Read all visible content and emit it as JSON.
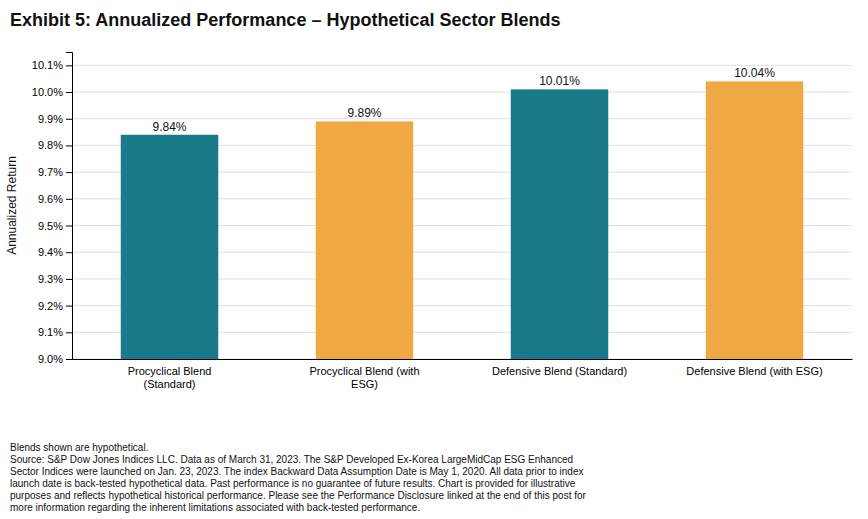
{
  "chart_data": {
    "type": "bar",
    "title": "Exhibit 5: Annualized Performance – Hypothetical Sector Blends",
    "categories": [
      "Procyclical Blend\n(Standard)",
      "Procyclical Blend (with\nESG)",
      "Defensive Blend (Standard)",
      "Defensive Blend (with ESG)"
    ],
    "values": [
      9.84,
      9.89,
      10.01,
      10.04
    ],
    "value_labels": [
      "9.84%",
      "9.89%",
      "10.01%",
      "10.04%"
    ],
    "colors": [
      "#1a7a8a",
      "#f0a845",
      "#1a7a8a",
      "#f0a845"
    ],
    "ylabel": "Annualized Return",
    "ylim": [
      9.0,
      10.15
    ],
    "yticks": [
      {
        "value": 9.0,
        "label": "9.0%"
      },
      {
        "value": 9.1,
        "label": "9.1%"
      },
      {
        "value": 9.2,
        "label": "9.2%"
      },
      {
        "value": 9.3,
        "label": "9.3%"
      },
      {
        "value": 9.4,
        "label": "9.4%"
      },
      {
        "value": 9.5,
        "label": "9.5%"
      },
      {
        "value": 9.6,
        "label": "9.6%"
      },
      {
        "value": 9.7,
        "label": "9.7%"
      },
      {
        "value": 9.8,
        "label": "9.8%"
      },
      {
        "value": 9.9,
        "label": "9.9%"
      },
      {
        "value": 10.0,
        "label": "10.0%"
      },
      {
        "value": 10.1,
        "label": "10.1%"
      }
    ],
    "grid": true,
    "data_labels": true,
    "footnote": "Blends shown are hypothetical.\nSource: S&P Dow Jones Indices LLC. Data as of March 31, 2023. The S&P Developed Ex-Korea LargeMidCap ESG Enhanced\nSector Indices were launched on Jan. 23, 2023. The index Backward Data Assumption Date is May 1, 2020. All data prior to index\nlaunch date is back-tested hypothetical data. Past performance is no guarantee of future results. Chart is provided for illustrative\npurposes and reflects hypothetical historical performance. Please see the Performance Disclosure linked at the end of this post for\nmore information regarding the inherent limitations associated with back-tested performance."
  }
}
